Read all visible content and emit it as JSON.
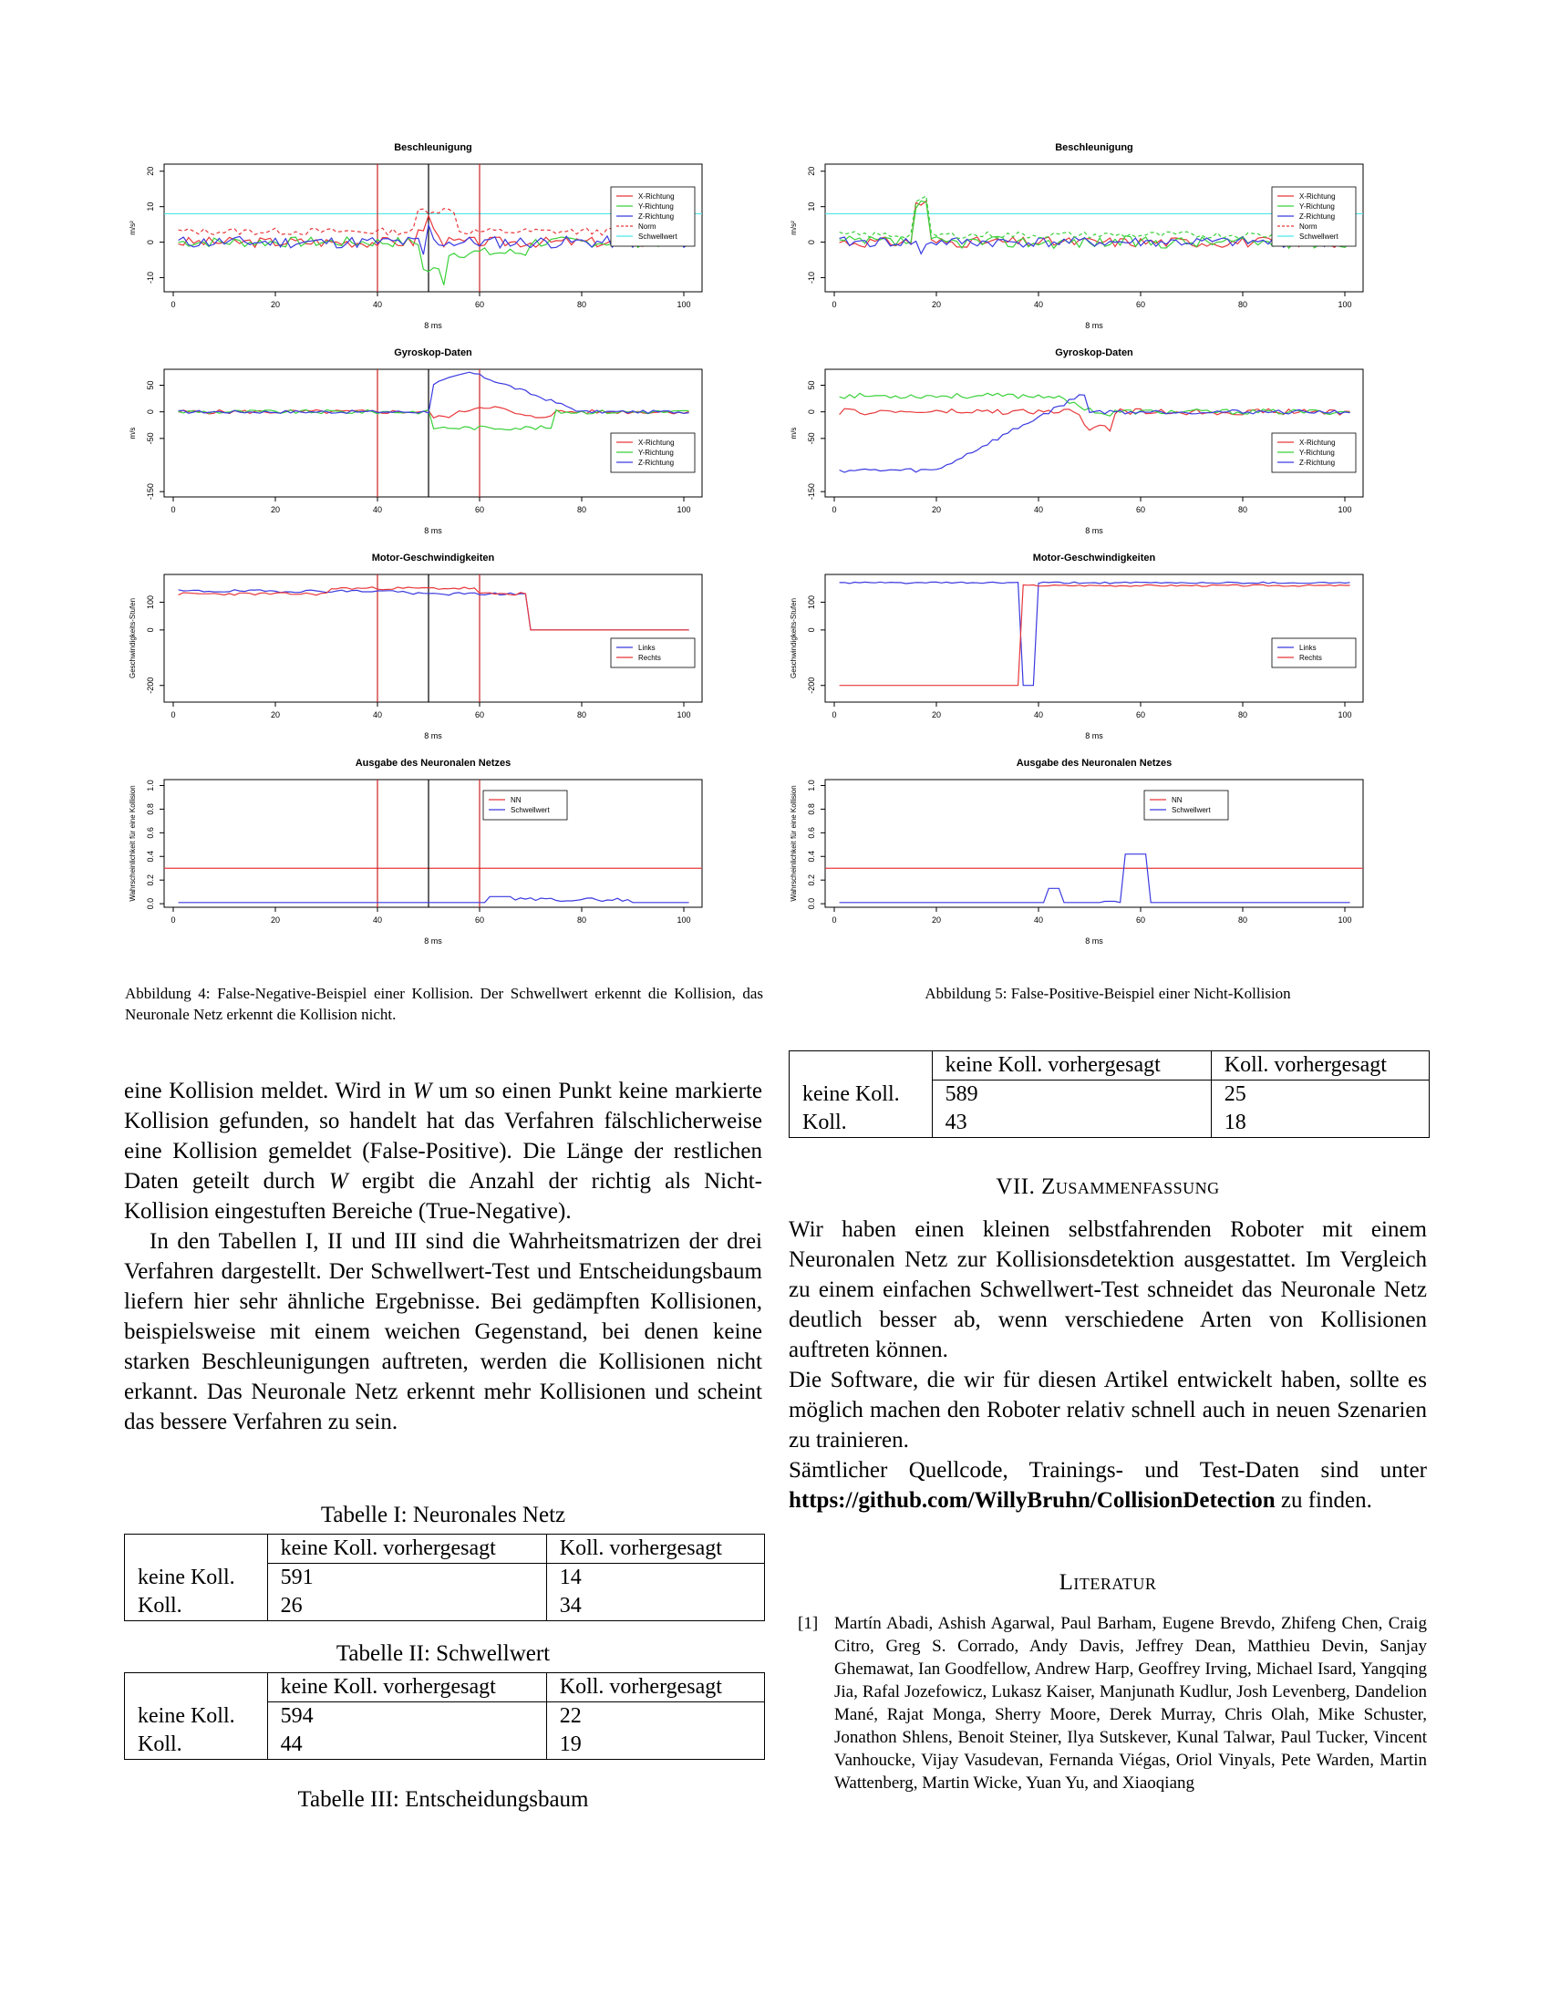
{
  "figures": {
    "left": [
      {
        "title": "Beschleunigung",
        "ylabel": "m/s²",
        "xlabel": "8 ms",
        "yticks": [
          "20",
          "10",
          "0",
          "-10"
        ],
        "xticks": [
          "0",
          "20",
          "40",
          "60",
          "80",
          "100"
        ],
        "legend": [
          "X-Richtung",
          "Y-Richtung",
          "Z-Richtung",
          "Norm",
          "Schwellwert"
        ]
      },
      {
        "title": "Gyroskop-Daten",
        "ylabel": "m/s",
        "xlabel": "8 ms",
        "yticks": [
          "50",
          "0",
          "-50",
          "-150"
        ],
        "xticks": [
          "0",
          "20",
          "40",
          "60",
          "80",
          "100"
        ],
        "legend": [
          "X-Richtung",
          "Y-Richtung",
          "Z-Richtung"
        ]
      },
      {
        "title": "Motor-Geschwindigkeiten",
        "ylabel": "Geschwindigkeits-Stufen",
        "xlabel": "8 ms",
        "yticks": [
          "100",
          "0",
          "-200"
        ],
        "xticks": [
          "0",
          "20",
          "40",
          "60",
          "80",
          "100"
        ],
        "legend": [
          "Links",
          "Rechts"
        ]
      },
      {
        "title": "Ausgabe des Neuronalen Netzes",
        "ylabel": "Wahrscheinlichkeit für eine Kollision",
        "xlabel": "8 ms",
        "yticks": [
          "1.0",
          "0.8",
          "0.6",
          "0.4",
          "0.2",
          "0.0"
        ],
        "xticks": [
          "0",
          "20",
          "40",
          "60",
          "80",
          "100"
        ],
        "legend": [
          "NN",
          "Schwellwert"
        ]
      }
    ],
    "right": [
      {
        "title": "Beschleunigung",
        "ylabel": "m/s²",
        "xlabel": "8 ms",
        "yticks": [
          "20",
          "10",
          "0",
          "-10"
        ],
        "xticks": [
          "0",
          "20",
          "40",
          "60",
          "80",
          "100"
        ],
        "legend": [
          "X-Richtung",
          "Y-Richtung",
          "Z-Richtung",
          "Norm",
          "Schwellwert"
        ]
      },
      {
        "title": "Gyroskop-Daten",
        "ylabel": "m/s",
        "xlabel": "8 ms",
        "yticks": [
          "50",
          "0",
          "-50",
          "-150"
        ],
        "xticks": [
          "0",
          "20",
          "40",
          "60",
          "80",
          "100"
        ],
        "legend": [
          "X-Richtung",
          "Y-Richtung",
          "Z-Richtung"
        ]
      },
      {
        "title": "Motor-Geschwindigkeiten",
        "ylabel": "Geschwindigkeits-Stufen",
        "xlabel": "8 ms",
        "yticks": [
          "100",
          "0",
          "-200"
        ],
        "xticks": [
          "0",
          "20",
          "40",
          "60",
          "80",
          "100"
        ],
        "legend": [
          "Links",
          "Rechts"
        ]
      },
      {
        "title": "Ausgabe des Neuronalen Netzes",
        "ylabel": "Wahrscheinlichkeit für eine Kollision",
        "xlabel": "8 ms",
        "yticks": [
          "1.0",
          "0.8",
          "0.6",
          "0.4",
          "0.2",
          "0.0"
        ],
        "xticks": [
          "0",
          "20",
          "40",
          "60",
          "80",
          "100"
        ],
        "legend": [
          "NN",
          "Schwellwert"
        ]
      }
    ],
    "caption_left": "Abbildung 4: False-Negative-Beispiel einer Kollision. Der Schwellwert erkennt die Kollision, das Neuronale Netz erkennt die Kollision nicht.",
    "caption_right": "Abbildung 5: False-Positive-Beispiel einer Nicht-Kollision"
  },
  "colors": {
    "x": "#e8383b",
    "y": "#3ad13a",
    "z": "#3a3ae0",
    "threshold": "#4ee6e6",
    "marker_red": "#cc2222",
    "marker_black": "#000000"
  },
  "left_column": {
    "p1": {
      "a": "eine Kollision meldet. Wird in ",
      "var": "W",
      "b": " um so einen Punkt keine markierte Kollision gefunden, so handelt hat das Verfahren fälschlicherweise eine Kollision gemeldet (False-Positive). Die Länge der restlichen Daten geteilt durch ",
      "var2": "W",
      "c": " ergibt die Anzahl der richtig als Nicht-Kollision eingestuften Bereiche (True-Negative)."
    },
    "p2": "In den Tabellen I, II und III sind die Wahrheitsmatrizen der drei Verfahren dargestellt. Der Schwellwert-Test und Entscheidungsbaum liefern hier sehr ähnliche Ergebnisse. Bei gedämpften Kollisionen, beispielsweise mit einem weichen Gegenstand, bei denen keine starken Beschleunigungen auftreten, werden die Kollisionen nicht erkannt. Das Neuronale Netz erkennt mehr Kollisionen und scheint das bessere Verfahren zu sein."
  },
  "tables": {
    "headers": [
      "keine Koll. vorhergesagt",
      "Koll. vorhergesagt"
    ],
    "row_labels": [
      "keine Koll.",
      "Koll."
    ],
    "t1": {
      "caption": "Tabelle I: Neuronales Netz",
      "rows": [
        [
          "591",
          "14"
        ],
        [
          "26",
          "34"
        ]
      ]
    },
    "t2": {
      "caption": "Tabelle II: Schwellwert",
      "rows": [
        [
          "594",
          "22"
        ],
        [
          "44",
          "19"
        ]
      ]
    },
    "t3": {
      "caption": "Tabelle III: Entscheidungsbaum",
      "rows": [
        [
          "589",
          "25"
        ],
        [
          "43",
          "18"
        ]
      ]
    }
  },
  "right_column": {
    "section_title": "VII. Zusammenfassung",
    "p1": "Wir haben einen kleinen selbstfahrenden Roboter mit einem Neuronalen Netz zur Kollisionsdetektion ausgestattet. Im Vergleich zu einem einfachen Schwellwert-Test schneidet das Neuronale Netz deutlich besser ab, wenn verschiedene Arten von Kollisionen auftreten können.",
    "p2": "Die Software, die wir für diesen Artikel entwickelt haben, sollte es möglich machen den Roboter relativ schnell auch in neuen Szenarien zu trainieren.",
    "p3_a": "Sämtlicher Quellcode, Trainings- und Test-Daten sind unter ",
    "p3_link": "https://github.com/WillyBruhn/CollisionDetection",
    "p3_b": " zu finden.",
    "refs_title": "Literatur",
    "ref1_num": "[1]",
    "ref1_text": "Martín Abadi, Ashish Agarwal, Paul Barham, Eugene Brevdo, Zhifeng Chen, Craig Citro, Greg S. Corrado, Andy Davis, Jeffrey Dean, Matthieu Devin, Sanjay Ghemawat, Ian Goodfellow, Andrew Harp, Geoffrey Irving, Michael Isard, Yangqing Jia, Rafal Jozefowicz, Lukasz Kaiser, Manjunath Kudlur, Josh Levenberg, Dandelion Mané, Rajat Monga, Sherry Moore, Derek Murray, Chris Olah, Mike Schuster, Jonathon Shlens, Benoit Steiner, Ilya Sutskever, Kunal Talwar, Paul Tucker, Vincent Vanhoucke, Vijay Vasudevan, Fernanda Viégas, Oriol Vinyals, Pete Warden, Martin Wattenberg, Martin Wicke, Yuan Yu, and Xiaoqiang"
  }
}
